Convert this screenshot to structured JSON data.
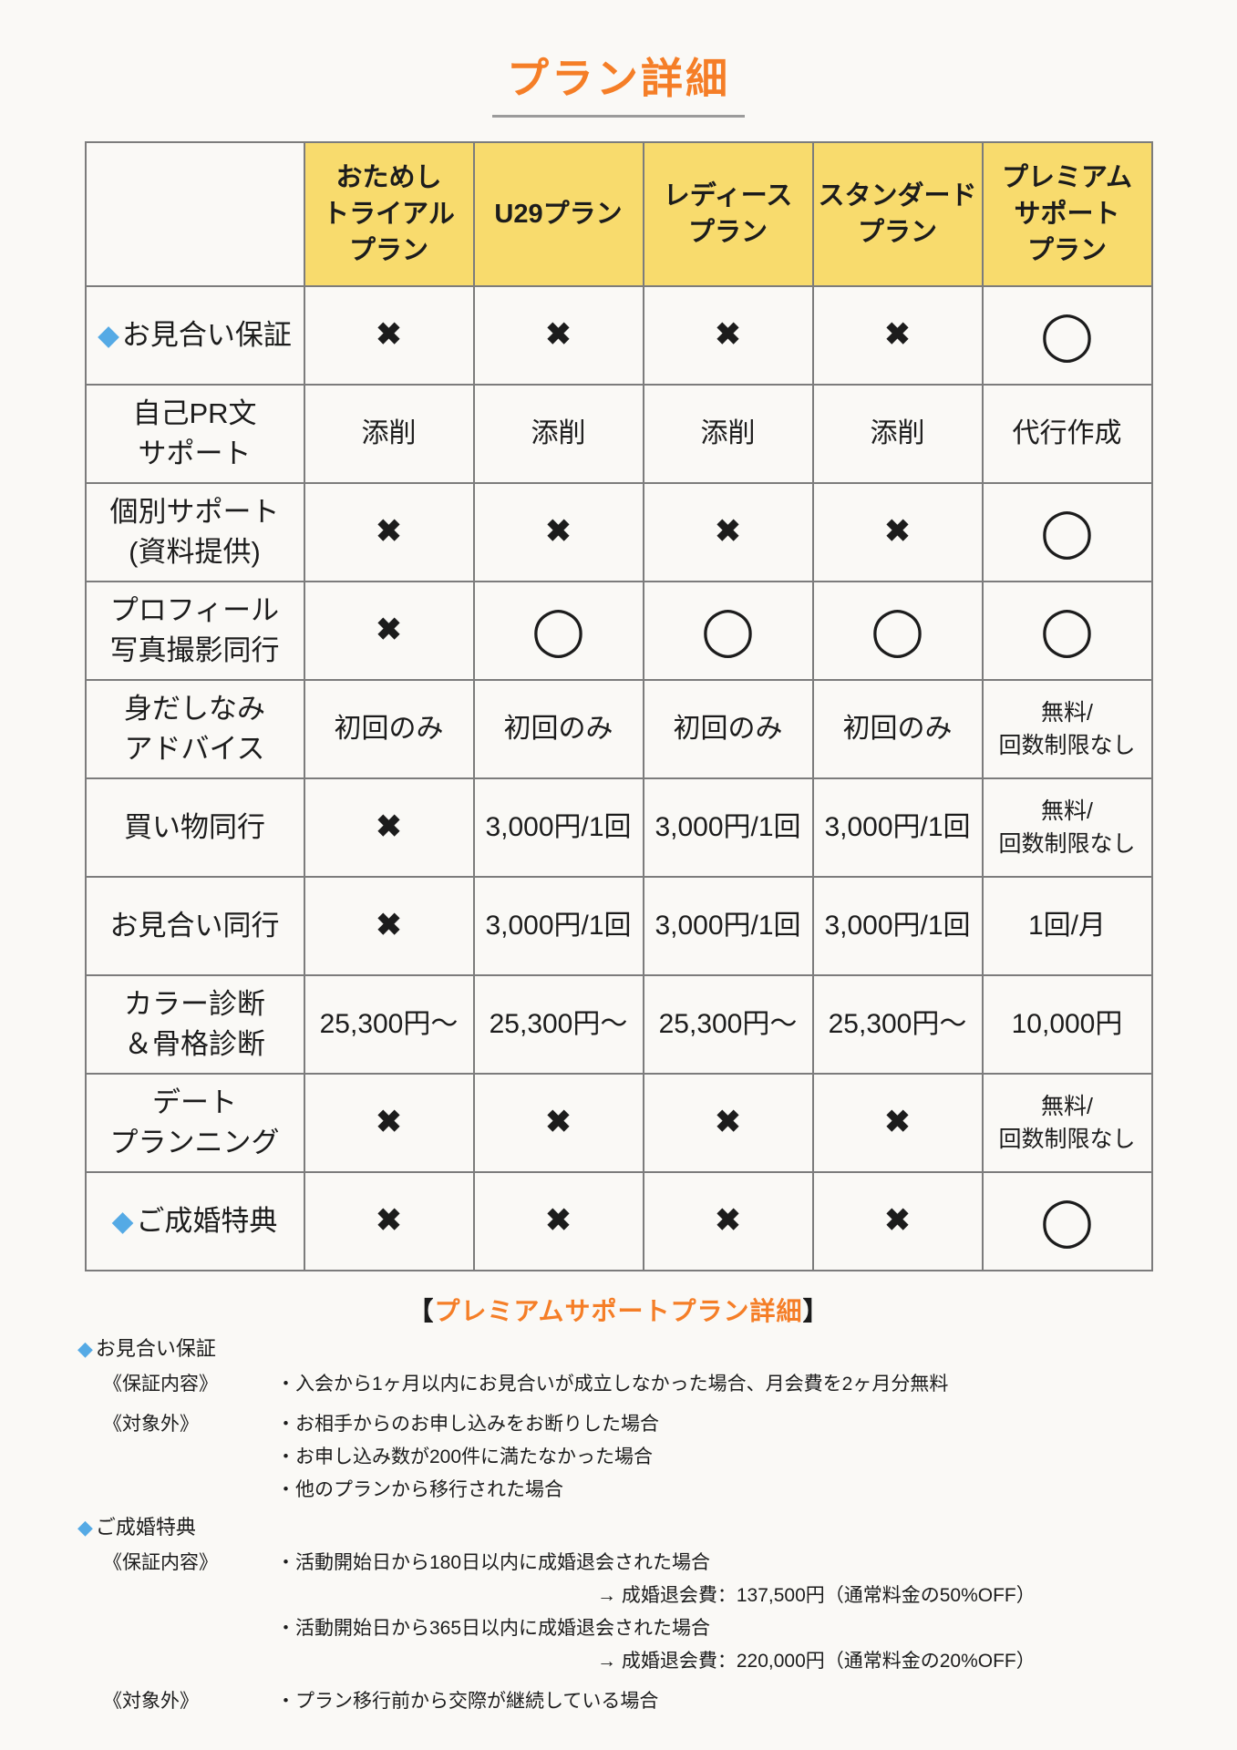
{
  "title": "プラン詳細",
  "colors": {
    "accent_orange": "#F57E27",
    "header_yellow": "#F8DB6D",
    "diamond_blue": "#55AAE5",
    "background": "#FAF9F6"
  },
  "icons": {
    "diamond": "◆",
    "cross": "✖",
    "circle": "◯"
  },
  "table": {
    "plans": [
      "おためし\nトライアル\nプラン",
      "U29プラン",
      "レディース\nプラン",
      "スタンダード\nプラン",
      "プレミアム\nサポート\nプラン"
    ],
    "rows": [
      {
        "label": "お見合い保証",
        "diamond": true,
        "values": [
          "✖",
          "✖",
          "✖",
          "✖",
          "◯"
        ]
      },
      {
        "label": "自己PR文\nサポート",
        "diamond": false,
        "values": [
          "添削",
          "添削",
          "添削",
          "添削",
          "代行作成"
        ]
      },
      {
        "label": "個別サポート\n(資料提供)",
        "diamond": false,
        "values": [
          "✖",
          "✖",
          "✖",
          "✖",
          "◯"
        ]
      },
      {
        "label": "プロフィール\n写真撮影同行",
        "diamond": false,
        "values": [
          "✖",
          "◯",
          "◯",
          "◯",
          "◯"
        ]
      },
      {
        "label": "身だしなみ\nアドバイス",
        "diamond": false,
        "values": [
          "初回のみ",
          "初回のみ",
          "初回のみ",
          "初回のみ",
          "無料/\n回数制限なし"
        ]
      },
      {
        "label": "買い物同行",
        "diamond": false,
        "values": [
          "✖",
          "3,000円/1回",
          "3,000円/1回",
          "3,000円/1回",
          "無料/\n回数制限なし"
        ]
      },
      {
        "label": "お見合い同行",
        "diamond": false,
        "values": [
          "✖",
          "3,000円/1回",
          "3,000円/1回",
          "3,000円/1回",
          "1回/月"
        ]
      },
      {
        "label": "カラー診断\n＆骨格診断",
        "diamond": false,
        "values": [
          "25,300円〜",
          "25,300円〜",
          "25,300円〜",
          "25,300円〜",
          "10,000円"
        ]
      },
      {
        "label": "デート\nプランニング",
        "diamond": false,
        "values": [
          "✖",
          "✖",
          "✖",
          "✖",
          "無料/\n回数制限なし"
        ]
      },
      {
        "label": "ご成婚特典",
        "diamond": true,
        "values": [
          "✖",
          "✖",
          "✖",
          "✖",
          "◯"
        ]
      }
    ]
  },
  "premium_detail": {
    "bracket_left": "【",
    "title": "プレミアムサポートプラン詳細",
    "bracket_right": "】"
  },
  "notes": [
    {
      "heading": "お見合い保証",
      "items": [
        {
          "label": "《保証内容》",
          "lines": [
            "・入会から1ヶ月以内にお見合いが成立しなかった場合、月会費を2ヶ月分無料"
          ]
        },
        {
          "label": "《対象外》",
          "lines": [
            "・お相手からのお申し込みをお断りした場合",
            "・お申し込み数が200件に満たなかった場合",
            "・他のプランから移行された場合"
          ]
        }
      ]
    },
    {
      "heading": "ご成婚特典",
      "items": [
        {
          "label": "《保証内容》",
          "lines": [
            "・活動開始日から180日以内に成婚退会された場合",
            "→ 成婚退会費：137,500円（通常料金の50%OFF）",
            "・活動開始日から365日以内に成婚退会された場合",
            "→ 成婚退会費：220,000円（通常料金の20%OFF）"
          ]
        },
        {
          "label": "《対象外》",
          "lines": [
            "・プラン移行前から交際が継続している場合"
          ]
        }
      ]
    }
  ]
}
